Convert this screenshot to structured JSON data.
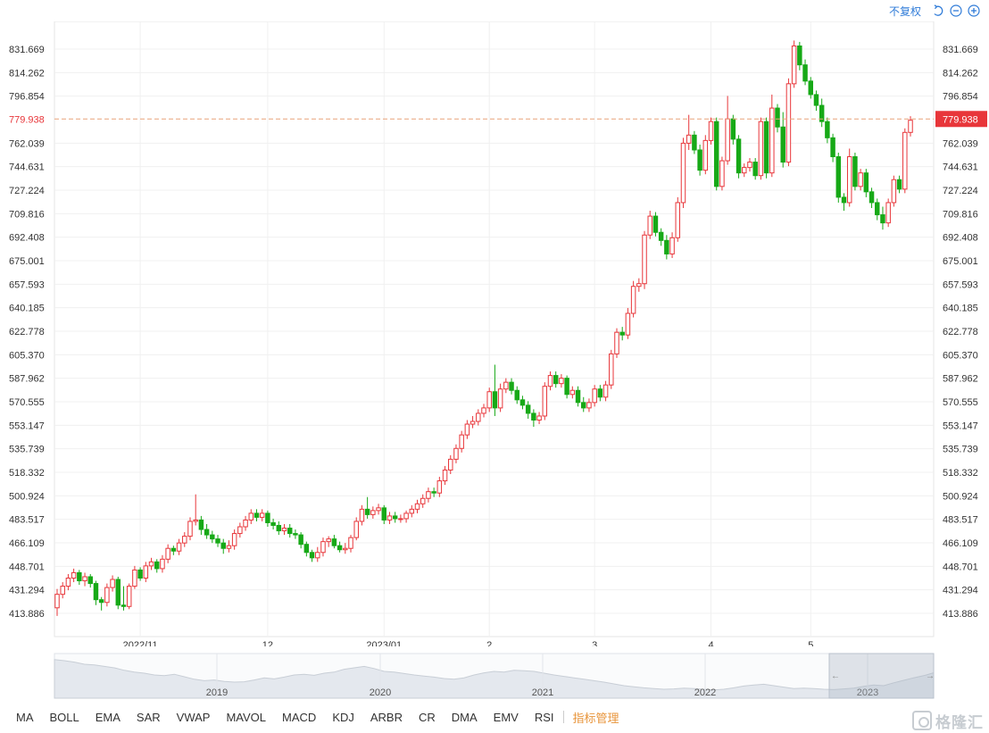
{
  "header": {
    "adjust_label": "不复权",
    "icons": [
      "undo-icon",
      "zoom-out-icon",
      "zoom-in-icon"
    ]
  },
  "chart_data": {
    "type": "candlestick",
    "price_ticks": [
      "831.669",
      "814.262",
      "796.854",
      "779.938",
      "762.039",
      "744.631",
      "727.224",
      "709.816",
      "692.408",
      "675.001",
      "657.593",
      "640.185",
      "622.778",
      "605.370",
      "587.962",
      "570.555",
      "553.147",
      "535.739",
      "518.332",
      "500.924",
      "483.517",
      "466.109",
      "448.701",
      "431.294",
      "413.886"
    ],
    "current_price": "779.938",
    "ylim": [
      400,
      845
    ],
    "time_labels": [
      {
        "label": "2022/11",
        "index": 15
      },
      {
        "label": "12",
        "index": 38
      },
      {
        "label": "2023/01",
        "index": 59
      },
      {
        "label": "2",
        "index": 78
      },
      {
        "label": "3",
        "index": 97
      },
      {
        "label": "4",
        "index": 118
      },
      {
        "label": "5",
        "index": 136
      }
    ],
    "candles": [
      [
        418,
        428,
        412,
        432
      ],
      [
        428,
        434,
        425,
        437
      ],
      [
        434,
        440,
        431,
        443
      ],
      [
        440,
        444,
        437,
        447
      ],
      [
        444,
        438,
        435,
        446
      ],
      [
        438,
        441,
        434,
        444
      ],
      [
        441,
        436,
        433,
        443
      ],
      [
        436,
        424,
        420,
        438
      ],
      [
        424,
        422,
        416,
        426
      ],
      [
        422,
        433,
        419,
        436
      ],
      [
        433,
        439,
        430,
        442
      ],
      [
        439,
        420,
        417,
        441
      ],
      [
        420,
        419,
        416,
        434
      ],
      [
        419,
        434,
        417,
        436
      ],
      [
        434,
        446,
        432,
        449
      ],
      [
        446,
        440,
        438,
        448
      ],
      [
        440,
        449,
        437,
        452
      ],
      [
        449,
        452,
        446,
        455
      ],
      [
        452,
        447,
        444,
        454
      ],
      [
        447,
        454,
        444,
        457
      ],
      [
        454,
        462,
        451,
        465
      ],
      [
        462,
        460,
        457,
        464
      ],
      [
        460,
        466,
        457,
        469
      ],
      [
        466,
        471,
        463,
        474
      ],
      [
        471,
        482,
        468,
        485
      ],
      [
        482,
        483,
        479,
        502
      ],
      [
        483,
        476,
        472,
        486
      ],
      [
        476,
        472,
        469,
        480
      ],
      [
        472,
        469,
        466,
        475
      ],
      [
        469,
        466,
        463,
        472
      ],
      [
        466,
        462,
        458,
        469
      ],
      [
        462,
        464,
        459,
        468
      ],
      [
        464,
        473,
        461,
        476
      ],
      [
        473,
        478,
        470,
        481
      ],
      [
        478,
        483,
        475,
        486
      ],
      [
        483,
        488,
        480,
        491
      ],
      [
        488,
        485,
        482,
        491
      ],
      [
        485,
        488,
        482,
        491
      ],
      [
        488,
        481,
        478,
        490
      ],
      [
        481,
        479,
        476,
        484
      ],
      [
        479,
        475,
        472,
        482
      ],
      [
        475,
        477,
        472,
        480
      ],
      [
        477,
        473,
        470,
        480
      ],
      [
        473,
        472,
        469,
        476
      ],
      [
        472,
        465,
        462,
        474
      ],
      [
        465,
        459,
        456,
        467
      ],
      [
        459,
        455,
        452,
        461
      ],
      [
        455,
        459,
        452,
        463
      ],
      [
        459,
        467,
        456,
        470
      ],
      [
        467,
        469,
        463,
        471
      ],
      [
        469,
        464,
        462,
        472
      ],
      [
        464,
        461,
        459,
        467
      ],
      [
        461,
        462,
        458,
        466
      ],
      [
        462,
        470,
        459,
        472
      ],
      [
        470,
        482,
        468,
        485
      ],
      [
        482,
        491,
        479,
        494
      ],
      [
        491,
        487,
        484,
        500
      ],
      [
        487,
        490,
        484,
        493
      ],
      [
        490,
        492,
        487,
        495
      ],
      [
        492,
        483,
        480,
        494
      ],
      [
        483,
        486,
        480,
        489
      ],
      [
        486,
        484,
        481,
        489
      ],
      [
        484,
        484,
        481,
        487
      ],
      [
        484,
        488,
        481,
        490
      ],
      [
        488,
        491,
        485,
        494
      ],
      [
        491,
        495,
        488,
        498
      ],
      [
        495,
        499,
        492,
        502
      ],
      [
        499,
        504,
        496,
        507
      ],
      [
        504,
        503,
        500,
        507
      ],
      [
        503,
        512,
        500,
        515
      ],
      [
        512,
        520,
        509,
        523
      ],
      [
        520,
        528,
        517,
        531
      ],
      [
        528,
        536,
        525,
        539
      ],
      [
        536,
        546,
        533,
        549
      ],
      [
        546,
        554,
        543,
        557
      ],
      [
        554,
        556,
        551,
        560
      ],
      [
        556,
        562,
        553,
        565
      ],
      [
        562,
        566,
        559,
        569
      ],
      [
        566,
        578,
        563,
        581
      ],
      [
        578,
        566,
        560,
        598
      ],
      [
        566,
        580,
        563,
        584
      ],
      [
        580,
        585,
        577,
        588
      ],
      [
        585,
        579,
        576,
        588
      ],
      [
        579,
        572,
        569,
        582
      ],
      [
        572,
        568,
        565,
        575
      ],
      [
        568,
        562,
        558,
        571
      ],
      [
        562,
        557,
        552,
        565
      ],
      [
        557,
        560,
        554,
        563
      ],
      [
        560,
        582,
        557,
        585
      ],
      [
        582,
        590,
        579,
        593
      ],
      [
        590,
        584,
        581,
        593
      ],
      [
        584,
        588,
        581,
        591
      ],
      [
        588,
        576,
        573,
        590
      ],
      [
        576,
        579,
        573,
        582
      ],
      [
        579,
        570,
        567,
        582
      ],
      [
        570,
        566,
        563,
        574
      ],
      [
        566,
        570,
        563,
        573
      ],
      [
        570,
        580,
        567,
        583
      ],
      [
        580,
        574,
        571,
        583
      ],
      [
        574,
        583,
        571,
        586
      ],
      [
        583,
        606,
        580,
        609
      ],
      [
        606,
        622,
        603,
        625
      ],
      [
        622,
        620,
        616,
        626
      ],
      [
        620,
        636,
        617,
        640
      ],
      [
        636,
        656,
        633,
        660
      ],
      [
        656,
        658,
        652,
        662
      ],
      [
        658,
        694,
        654,
        697
      ],
      [
        694,
        708,
        691,
        712
      ],
      [
        708,
        696,
        693,
        711
      ],
      [
        696,
        690,
        686,
        699
      ],
      [
        690,
        680,
        676,
        694
      ],
      [
        680,
        692,
        677,
        696
      ],
      [
        692,
        718,
        689,
        722
      ],
      [
        718,
        762,
        714,
        766
      ],
      [
        762,
        768,
        757,
        783
      ],
      [
        768,
        757,
        754,
        771
      ],
      [
        757,
        742,
        738,
        761
      ],
      [
        742,
        764,
        739,
        768
      ],
      [
        764,
        778,
        761,
        781
      ],
      [
        778,
        730,
        727,
        781
      ],
      [
        730,
        749,
        727,
        752
      ],
      [
        749,
        780,
        746,
        797
      ],
      [
        780,
        765,
        761,
        783
      ],
      [
        765,
        740,
        736,
        768
      ],
      [
        740,
        744,
        737,
        747
      ],
      [
        744,
        748,
        741,
        751
      ],
      [
        748,
        738,
        735,
        751
      ],
      [
        738,
        778,
        735,
        781
      ],
      [
        778,
        740,
        736,
        781
      ],
      [
        740,
        788,
        737,
        798
      ],
      [
        788,
        774,
        770,
        791
      ],
      [
        774,
        748,
        744,
        785
      ],
      [
        748,
        806,
        745,
        810
      ],
      [
        806,
        834,
        803,
        838
      ],
      [
        834,
        820,
        816,
        837
      ],
      [
        820,
        808,
        805,
        824
      ],
      [
        808,
        798,
        795,
        811
      ],
      [
        798,
        790,
        786,
        801
      ],
      [
        790,
        778,
        774,
        795
      ],
      [
        778,
        766,
        762,
        781
      ],
      [
        766,
        752,
        748,
        769
      ],
      [
        752,
        722,
        718,
        755
      ],
      [
        722,
        718,
        712,
        725
      ],
      [
        718,
        752,
        715,
        758
      ],
      [
        752,
        730,
        727,
        755
      ],
      [
        730,
        740,
        727,
        743
      ],
      [
        740,
        726,
        722,
        743
      ],
      [
        726,
        718,
        714,
        729
      ],
      [
        718,
        709,
        705,
        721
      ],
      [
        709,
        703,
        698,
        715
      ],
      [
        703,
        718,
        700,
        721
      ],
      [
        718,
        735,
        715,
        738
      ],
      [
        735,
        728,
        725,
        738
      ],
      [
        728,
        770,
        725,
        773
      ],
      [
        770,
        779,
        767,
        782
      ]
    ]
  },
  "navigator": {
    "year_labels": [
      "2019",
      "2020",
      "2021",
      "2022",
      "2023"
    ],
    "profile": [
      0.93,
      0.9,
      0.86,
      0.8,
      0.78,
      0.74,
      0.7,
      0.63,
      0.58,
      0.55,
      0.5,
      0.48,
      0.52,
      0.45,
      0.38,
      0.34,
      0.36,
      0.32,
      0.3,
      0.31,
      0.36,
      0.42,
      0.39,
      0.44,
      0.5,
      0.52,
      0.49,
      0.55,
      0.58,
      0.66,
      0.7,
      0.74,
      0.68,
      0.6,
      0.58,
      0.54,
      0.5,
      0.47,
      0.44,
      0.4,
      0.38,
      0.42,
      0.5,
      0.56,
      0.6,
      0.58,
      0.63,
      0.62,
      0.6,
      0.55,
      0.5,
      0.46,
      0.42,
      0.38,
      0.34,
      0.3,
      0.25,
      0.2,
      0.17,
      0.14,
      0.12,
      0.1,
      0.11,
      0.13,
      0.12,
      0.1,
      0.08,
      0.1,
      0.14,
      0.19,
      0.22,
      0.24,
      0.2,
      0.16,
      0.12,
      0.13,
      0.12,
      0.1,
      0.09,
      0.11,
      0.13,
      0.18,
      0.22,
      0.2,
      0.28,
      0.35,
      0.42,
      0.48,
      0.56
    ]
  },
  "indicators": [
    "MA",
    "BOLL",
    "EMA",
    "SAR",
    "VWAP",
    "MAVOL",
    "MACD",
    "KDJ",
    "ARBR",
    "CR",
    "DMA",
    "EMV",
    "RSI"
  ],
  "indicator_manage": "指标管理",
  "watermark": "格隆汇",
  "colors": {
    "up": "#e8363a",
    "down": "#17a917",
    "price_tag": "#e8363a",
    "accent": "#2f7bd8",
    "manage": "#e8943a"
  }
}
